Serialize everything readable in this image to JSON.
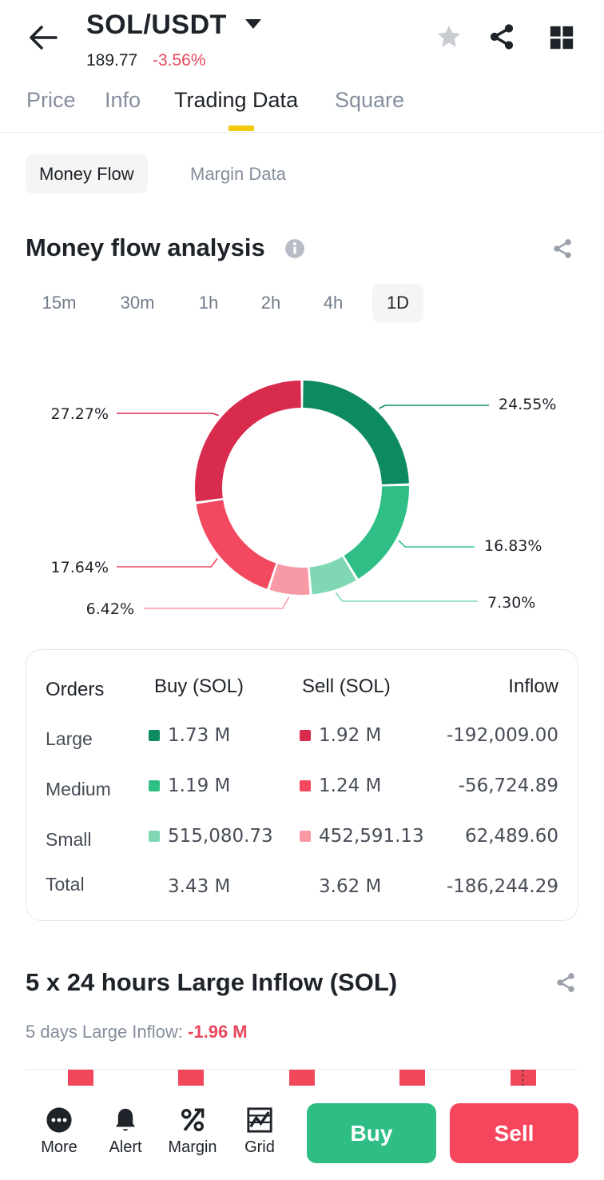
{
  "header": {
    "pair": "SOL/USDT",
    "price": "189.77",
    "change": "-3.56%",
    "icons": [
      "back-arrow-icon",
      "caret-down-icon",
      "star-icon",
      "share-icon",
      "grid-icon"
    ]
  },
  "tabs": [
    {
      "label": "Price",
      "active": false
    },
    {
      "label": "Info",
      "active": false
    },
    {
      "label": "Trading Data",
      "active": true
    },
    {
      "label": "Square",
      "active": false
    }
  ],
  "subtabs": [
    {
      "label": "Money Flow",
      "active": true
    },
    {
      "label": "Margin Data",
      "active": false
    }
  ],
  "money_flow": {
    "title": "Money flow analysis",
    "periods": [
      {
        "label": "15m",
        "active": false
      },
      {
        "label": "30m",
        "active": false
      },
      {
        "label": "1h",
        "active": false
      },
      {
        "label": "2h",
        "active": false
      },
      {
        "label": "4h",
        "active": false
      },
      {
        "label": "1D",
        "active": true
      }
    ]
  },
  "chart_data": {
    "type": "pie",
    "title": "Money flow analysis",
    "slices": [
      {
        "label": "Large Buy",
        "value": 24.55,
        "display": "24.55%",
        "color": "#0d8a5f"
      },
      {
        "label": "Medium Buy",
        "value": 16.83,
        "display": "16.83%",
        "color": "#2fbf86"
      },
      {
        "label": "Small Buy",
        "value": 7.3,
        "display": "7.30%",
        "color": "#7fd8b3"
      },
      {
        "label": "Small Sell",
        "value": 6.42,
        "display": "6.42%",
        "color": "#f79aa5"
      },
      {
        "label": "Medium Sell",
        "value": 17.64,
        "display": "17.64%",
        "color": "#f24860"
      },
      {
        "label": "Large Sell",
        "value": 27.27,
        "display": "27.27%",
        "color": "#d92b4d"
      }
    ]
  },
  "orders_table": {
    "headers": {
      "orders": "Orders",
      "buy": "Buy (SOL)",
      "sell": "Sell (SOL)",
      "inflow": "Inflow"
    },
    "rows": [
      {
        "label": "Large",
        "buy": "1.73 M",
        "sell": "1.92 M",
        "inflow": "-192,009.00",
        "buy_color": "#0d8a5f",
        "sell_color": "#d92b4d"
      },
      {
        "label": "Medium",
        "buy": "1.19 M",
        "sell": "1.24 M",
        "inflow": "-56,724.89",
        "buy_color": "#2fbf86",
        "sell_color": "#f24860"
      },
      {
        "label": "Small",
        "buy": "515,080.73",
        "sell": "452,591.13",
        "inflow": "62,489.60",
        "buy_color": "#7fd8b3",
        "sell_color": "#f79aa5"
      },
      {
        "label": "Total",
        "buy": "3.43 M",
        "sell": "3.62 M",
        "inflow": "-186,244.29"
      }
    ]
  },
  "large_inflow": {
    "title": "5 x 24 hours Large Inflow (SOL)",
    "summary_label": "5 days Large Inflow:",
    "summary_value": "-1.96 M"
  },
  "bottom_nav": {
    "items": [
      {
        "label": "More",
        "icon": "more-icon"
      },
      {
        "label": "Alert",
        "icon": "bell-icon"
      },
      {
        "label": "Margin",
        "icon": "percent-icon"
      },
      {
        "label": "Grid",
        "icon": "grid-bot-icon"
      }
    ],
    "buy_label": "Buy",
    "sell_label": "Sell"
  },
  "colors": {
    "accent": "#f0c90b",
    "buy": "#2ebd85",
    "sell": "#f6465d",
    "negative_text": "#e8485c"
  }
}
